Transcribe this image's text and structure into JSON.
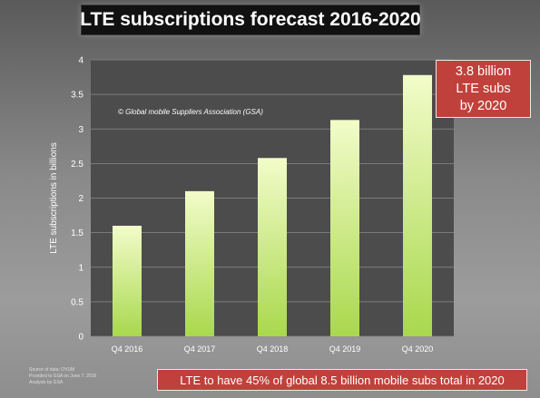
{
  "title": "LTE subscriptions forecast 2016-2020",
  "copyright": "© Global mobile Suppliers Association (GSA)",
  "callout": {
    "lines": [
      "3.8 billion",
      "LTE subs",
      "by 2020"
    ]
  },
  "bottom_banner": "LTE to have 45% of global 8.5 billion mobile subs total in 2020",
  "source_notes": [
    "Source of data: OVUM",
    "Provided to GSA on June 7, 2016",
    "Analysis by GSA"
  ],
  "colors": {
    "plot_bg": "#4c4c4c",
    "bar_light": "#f2fcc9",
    "bar_dark": "#a9d84d",
    "callout_bg": "#c0413b",
    "title_bg": "#111111"
  },
  "chart_data": {
    "type": "bar",
    "categories": [
      "Q4 2016",
      "Q4 2017",
      "Q4 2018",
      "Q4 2019",
      "Q4 2020"
    ],
    "values": [
      1.6,
      2.1,
      2.58,
      3.13,
      3.78
    ],
    "ylabel": "LTE subscriptions in billions",
    "ylim": [
      0,
      4
    ],
    "yticks": [
      "0",
      "0.5",
      "1",
      "1.5",
      "2",
      "2.5",
      "3",
      "3.5",
      "4"
    ],
    "grid": true
  }
}
